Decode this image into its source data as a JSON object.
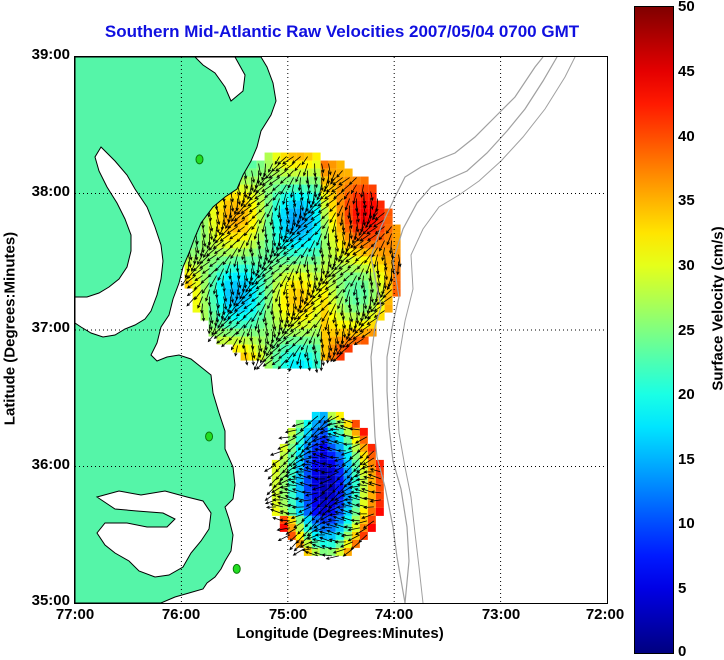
{
  "title": "Southern Mid-Atlantic Raw Velocities 2007/05/04 0700 GMT",
  "xlabel": "Longitude (Degrees:Minutes)",
  "ylabel": "Latitude (Degrees:Minutes)",
  "x_ticks": [
    "77:00",
    "76:00",
    "75:00",
    "74:00",
    "73:00",
    "72:00"
  ],
  "y_ticks": [
    "39:00",
    "38:00",
    "37:00",
    "36:00",
    "35:00"
  ],
  "colorbar": {
    "label": "Surface Velocity (cm/s)",
    "ticks": [
      "50",
      "45",
      "40",
      "35",
      "30",
      "25",
      "20",
      "15",
      "10",
      "5",
      "0"
    ],
    "range": [
      0,
      50
    ],
    "colormap": "jet"
  },
  "colors": {
    "land": "#55f5a8",
    "coast": "#000000",
    "bathymetry": "#a0a0a0",
    "title": "#1010e0",
    "stations": "#22dd22"
  },
  "map": {
    "lon_range": [
      -77,
      -72
    ],
    "lat_range": [
      35,
      39
    ],
    "grid": "dotted",
    "stations": [
      {
        "lon": -75.83,
        "lat": 38.25
      },
      {
        "lon": -75.74,
        "lat": 36.22
      },
      {
        "lon": -75.48,
        "lat": 35.25
      }
    ],
    "velocity_fields": [
      {
        "region": "north",
        "lon_range": [
          -75.97,
          -73.93
        ],
        "lat_range": [
          36.72,
          38.3
        ],
        "typical_speed_cms": [
          22,
          45
        ]
      },
      {
        "region": "south",
        "lon_range": [
          -75.15,
          -74.1
        ],
        "lat_range": [
          35.32,
          36.4
        ],
        "typical_speed_cms": [
          8,
          48
        ]
      }
    ]
  }
}
